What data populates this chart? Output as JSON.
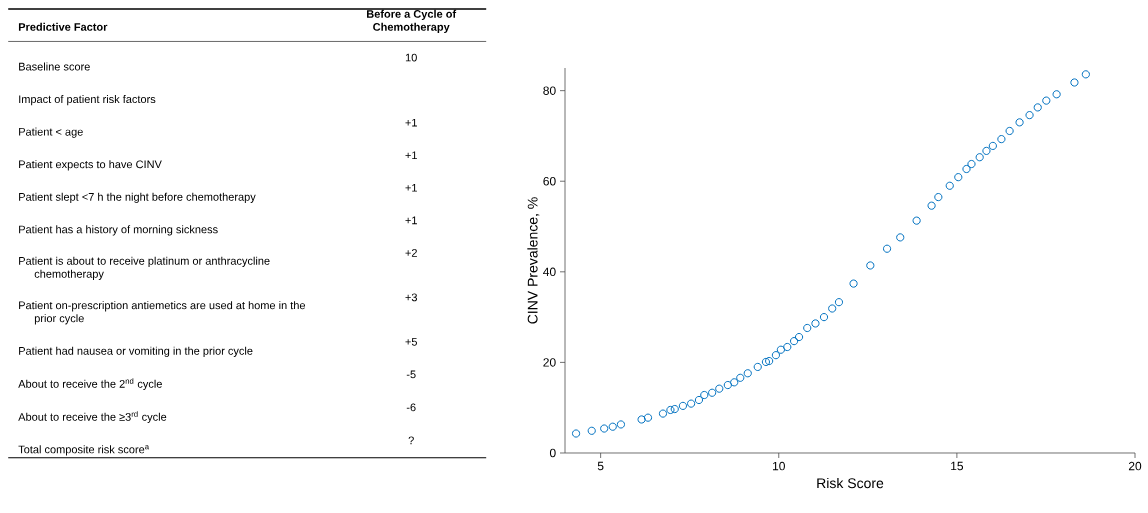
{
  "chart_data": [
    {
      "type": "other",
      "xlabel": "Predictive Factor",
      "ylabel": "Before a Cycle of Chemotherapy",
      "categories": [
        "Baseline score",
        "Impact of patient risk factors",
        "Patient < age",
        "Patient expects to have CINV",
        "Patient slept <7 h the night before chemotherapy",
        "Patient has a history of morning sickness",
        "Patient is about to receive platinum or anthracycline chemotherapy",
        "Patient on-prescription antiemetics are used at home in the prior cycle",
        "Patient had nausea or vomiting in the prior cycle",
        "About to receive the 2$^{nd}$ cycle",
        "About to receive the ≥3$^{rd}$ cycle",
        "Total composite risk score$^{a}$"
      ],
      "value_labels": [
        "10",
        null,
        "+1",
        "+1",
        "+1",
        "+1",
        "+2",
        "+3",
        "+5",
        "-5",
        "-6",
        "?"
      ]
    },
    {
      "type": "scatter",
      "xlabel": "Risk Score",
      "ylabel": "CINV Prevalence, %",
      "marker": "circle",
      "color": "#0070c0",
      "xlim": [
        4,
        20
      ],
      "ylim": [
        0,
        85
      ],
      "xticks": [
        5,
        10,
        15,
        20
      ],
      "yticks": [
        0,
        20,
        40,
        60,
        80
      ],
      "x": [
        4.31,
        4.75,
        5.1,
        5.34,
        5.57,
        6.15,
        6.33,
        6.75,
        6.96,
        7.08,
        7.31,
        7.54,
        7.76,
        7.91,
        8.13,
        8.33,
        8.57,
        8.75,
        8.92,
        9.13,
        9.41,
        9.64,
        9.73,
        9.92,
        10.06,
        10.24,
        10.43,
        10.57,
        10.8,
        11.03,
        11.27,
        11.5,
        11.69,
        12.1,
        12.57,
        13.04,
        13.41,
        13.87,
        14.29,
        14.48,
        14.8,
        15.04,
        15.27,
        15.41,
        15.64,
        15.83,
        16.01,
        16.25,
        16.48,
        16.76,
        17.04,
        17.27,
        17.51,
        17.8,
        18.3,
        18.62
      ],
      "values": [
        4.3,
        4.9,
        5.4,
        5.8,
        6.3,
        7.4,
        7.8,
        8.7,
        9.5,
        9.7,
        10.4,
        10.9,
        11.7,
        12.8,
        13.3,
        14.2,
        15.0,
        15.6,
        16.6,
        17.6,
        19.0,
        20.1,
        20.3,
        21.6,
        22.8,
        23.4,
        24.7,
        25.6,
        27.6,
        28.6,
        30.0,
        31.9,
        33.3,
        37.4,
        41.4,
        45.1,
        47.6,
        51.3,
        54.6,
        56.5,
        59.0,
        60.9,
        62.7,
        63.8,
        65.3,
        66.7,
        67.8,
        69.3,
        71.1,
        73.0,
        74.6,
        76.3,
        77.8,
        79.2,
        81.8,
        83.6
      ]
    }
  ]
}
